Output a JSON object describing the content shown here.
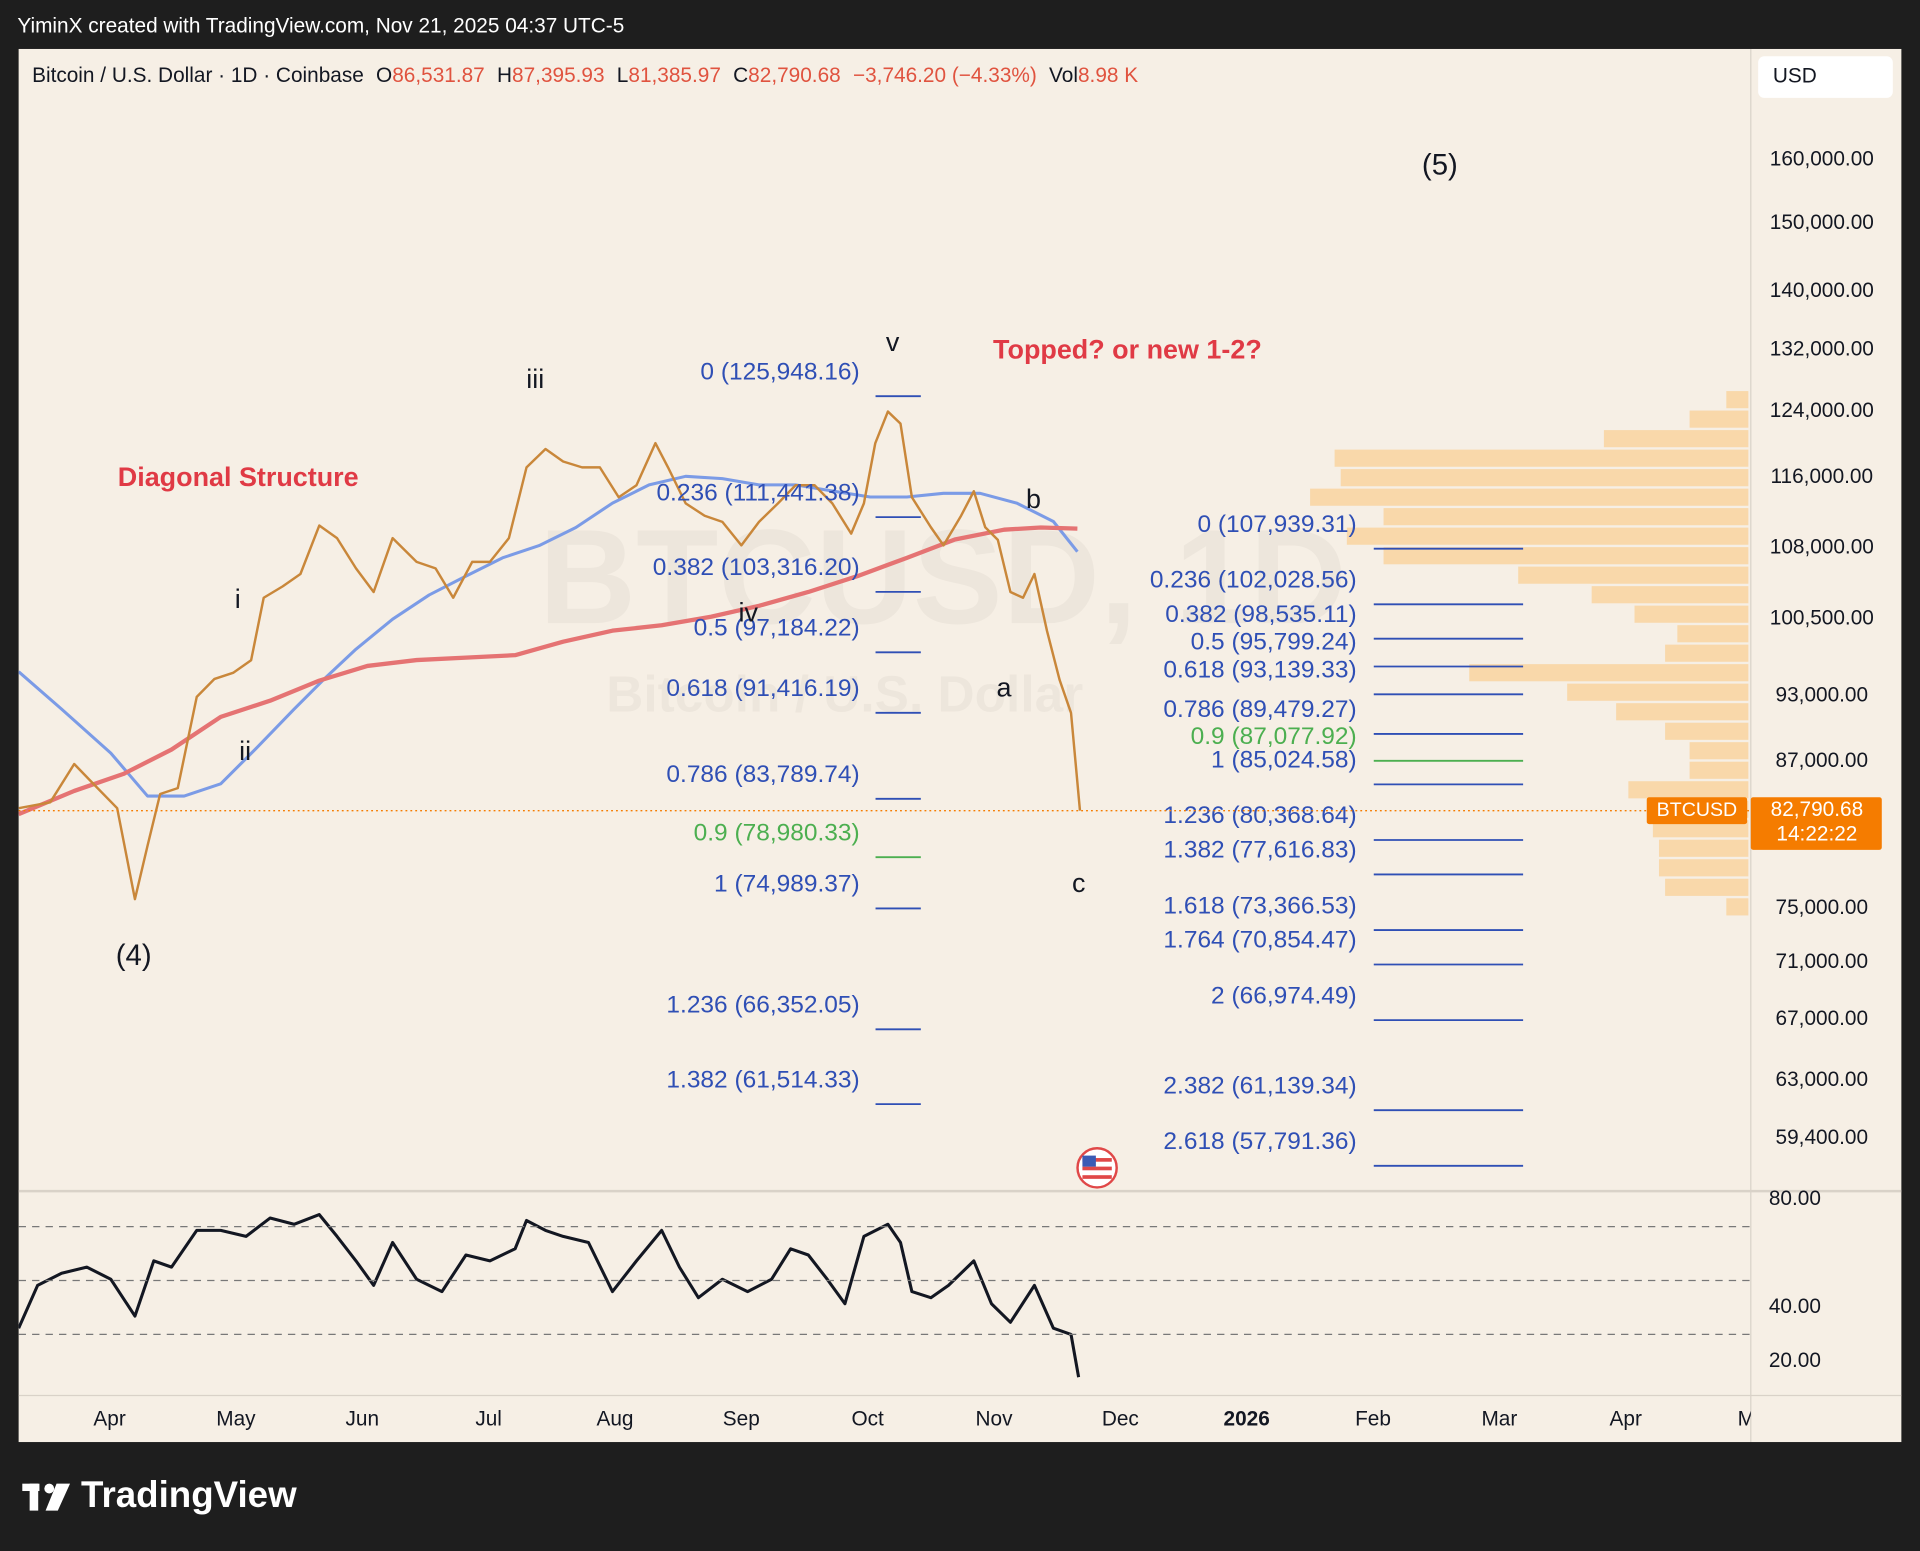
{
  "header": {
    "credit": "YiminX created with TradingView.com, Nov 21, 2025 04:37 UTC-5",
    "symbol": "Bitcoin / U.S. Dollar · 1D · Coinbase",
    "ohlc": [
      {
        "key": "O",
        "value": "86,531.87"
      },
      {
        "key": "H",
        "value": "87,395.93"
      },
      {
        "key": "L",
        "value": "81,385.97"
      },
      {
        "key": "C",
        "value": "82,790.68"
      }
    ],
    "change": "−3,746.20 (−4.33%)",
    "vol_key": "Vol",
    "vol": "8.98 K",
    "currency": "USD"
  },
  "watermark": {
    "ticker": "BTCUSD, 1D",
    "name": "Bitcoin / U.S. Dollar"
  },
  "annotations": [
    "(5)",
    "v",
    "iii",
    "i",
    "ii",
    "iv",
    "(4)",
    "a",
    "b",
    "c",
    "Diagonal Structure",
    "Topped? or new 1-2?"
  ],
  "footer": {
    "brand": "TradingView"
  },
  "chart_data": [
    {
      "type": "line",
      "log_scale": true,
      "xlim": [
        3.28,
        16.99
      ],
      "xticks": [
        {
          "value": 4,
          "label": "Apr"
        },
        {
          "value": 5,
          "label": "May"
        },
        {
          "value": 6,
          "label": "Jun"
        },
        {
          "value": 7,
          "label": "Jul"
        },
        {
          "value": 8,
          "label": "Aug"
        },
        {
          "value": 9,
          "label": "Sep"
        },
        {
          "value": 10,
          "label": "Oct"
        },
        {
          "value": 11,
          "label": "Nov"
        },
        {
          "value": 12,
          "label": "Dec"
        },
        {
          "value": 13,
          "label": "2026"
        },
        {
          "value": 14,
          "label": "Feb"
        },
        {
          "value": 15,
          "label": "Mar"
        },
        {
          "value": 16,
          "label": "Apr"
        },
        {
          "value": 17,
          "label": "Ma"
        }
      ],
      "ylim": [
        56400,
        179000
      ],
      "yticks": [
        {
          "value": 160000,
          "label": "160,000.00"
        },
        {
          "value": 150000,
          "label": "150,000.00"
        },
        {
          "value": 140000,
          "label": "140,000.00"
        },
        {
          "value": 132000,
          "label": "132,000.00"
        },
        {
          "value": 124000,
          "label": "124,000.00"
        },
        {
          "value": 116000,
          "label": "116,000.00"
        },
        {
          "value": 108000,
          "label": "108,000.00"
        },
        {
          "value": 100500,
          "label": "100,500.00"
        },
        {
          "value": 93000,
          "label": "93,000.00"
        },
        {
          "value": 87000,
          "label": "87,000.00"
        },
        {
          "value": 75000,
          "label": "75,000.00"
        },
        {
          "value": 71000,
          "label": "71,000.00"
        },
        {
          "value": 67000,
          "label": "67,000.00"
        },
        {
          "value": 63000,
          "label": "63,000.00"
        },
        {
          "value": 59400,
          "label": "59,400.00"
        }
      ],
      "series": [
        {
          "color": "#7b9be6",
          "width": 2.5,
          "x": [
            3.28,
            3.62,
            4.01,
            4.3,
            4.59,
            4.88,
            5.17,
            5.46,
            5.7,
            5.95,
            6.24,
            6.53,
            6.82,
            7.11,
            7.4,
            7.69,
            7.98,
            8.27,
            8.56,
            8.85,
            9.14,
            9.43,
            9.72,
            10.02,
            10.31,
            10.6,
            10.89,
            11.18,
            11.47,
            11.66
          ],
          "values": [
            95300,
            91750,
            87760,
            84020,
            84020,
            85070,
            88300,
            91750,
            94620,
            97500,
            100500,
            103000,
            104980,
            106940,
            108270,
            110270,
            113030,
            115140,
            116140,
            115860,
            115140,
            115140,
            114430,
            113730,
            113730,
            114150,
            114150,
            113030,
            110950,
            107600
          ]
        },
        {
          "color": "#e57373",
          "width": 3.5,
          "x": [
            3.28,
            3.72,
            4.11,
            4.49,
            4.88,
            5.27,
            5.66,
            6.04,
            6.43,
            6.82,
            7.21,
            7.59,
            7.98,
            8.37,
            8.76,
            9.14,
            9.53,
            9.92,
            10.31,
            10.69,
            11.08,
            11.37,
            11.66
          ],
          "values": [
            82500,
            84460,
            85930,
            88080,
            91040,
            92540,
            94440,
            95850,
            96430,
            96670,
            96910,
            98240,
            99340,
            99880,
            100750,
            101870,
            103300,
            104980,
            106940,
            108940,
            110030,
            110270,
            110160
          ]
        },
        {
          "color": "#c9873a",
          "width": 2,
          "x": [
            3.28,
            3.53,
            3.72,
            3.86,
            4.06,
            4.2,
            4.3,
            4.4,
            4.54,
            4.69,
            4.83,
            4.98,
            5.12,
            5.22,
            5.37,
            5.51,
            5.66,
            5.8,
            5.95,
            6.09,
            6.24,
            6.43,
            6.58,
            6.72,
            6.87,
            7.01,
            7.16,
            7.3,
            7.45,
            7.59,
            7.74,
            7.88,
            8.03,
            8.17,
            8.32,
            8.42,
            8.56,
            8.71,
            8.85,
            9,
            9.14,
            9.29,
            9.43,
            9.58,
            9.72,
            9.87,
            9.97,
            10.06,
            10.16,
            10.26,
            10.35,
            10.5,
            10.6,
            10.74,
            10.84,
            10.93,
            11.03,
            11.13,
            11.23,
            11.32,
            11.42,
            11.52,
            11.61,
            11.68
          ],
          "values": [
            83000,
            83500,
            86800,
            85200,
            83000,
            75700,
            79900,
            84200,
            84700,
            92900,
            94600,
            95200,
            96400,
            102700,
            103900,
            105200,
            110500,
            109100,
            105800,
            103300,
            109100,
            106500,
            105800,
            102700,
            106500,
            106500,
            109100,
            117200,
            119400,
            117900,
            117200,
            117200,
            113700,
            115100,
            120100,
            117200,
            113000,
            111600,
            110900,
            108300,
            110900,
            113000,
            115100,
            115100,
            113000,
            109600,
            113000,
            120100,
            124000,
            122500,
            113700,
            110300,
            108300,
            111600,
            114400,
            110300,
            108900,
            103300,
            102700,
            105200,
            99300,
            94500,
            91400,
            82790.68
          ]
        }
      ],
      "last_price": {
        "value": 82790.68,
        "label": "82,790.68",
        "tag": "BTCUSD",
        "countdown": "14:22:22",
        "color": "#f57c00"
      },
      "fib_sets": [
        {
          "levels": [
            {
              "label": "0 (125,948.16)",
              "value": 125948.16,
              "color": "#2f4fb5"
            },
            {
              "label": "0.236 (111,441.38)",
              "value": 111441.38,
              "color": "#2f4fb5"
            },
            {
              "label": "0.382 (103,316.20)",
              "value": 103316.2,
              "color": "#2f4fb5"
            },
            {
              "label": "0.5 (97,184.22)",
              "value": 97184.22,
              "color": "#2f4fb5"
            },
            {
              "label": "0.618 (91,416.19)",
              "value": 91416.19,
              "color": "#2f4fb5"
            },
            {
              "label": "0.786 (83,789.74)",
              "value": 83789.74,
              "color": "#2f4fb5"
            },
            {
              "label": "0.9 (78,980.33)",
              "value": 78980.33,
              "color": "#4caf50"
            },
            {
              "label": "1 (74,989.37)",
              "value": 74989.37,
              "color": "#2f4fb5"
            },
            {
              "label": "1.236 (66,352.05)",
              "value": 66352.05,
              "color": "#2f4fb5"
            },
            {
              "label": "1.382 (61,514.33)",
              "value": 61514.33,
              "color": "#2f4fb5"
            }
          ]
        },
        {
          "levels": [
            {
              "label": "0 (107,939.31)",
              "value": 107939.31,
              "color": "#2f4fb5"
            },
            {
              "label": "0.236 (102,028.56)",
              "value": 102028.56,
              "color": "#2f4fb5"
            },
            {
              "label": "0.382 (98,535.11)",
              "value": 98535.11,
              "color": "#2f4fb5"
            },
            {
              "label": "0.5 (95,799.24)",
              "value": 95799.24,
              "color": "#2f4fb5"
            },
            {
              "label": "0.618 (93,139.33)",
              "value": 93139.33,
              "color": "#2f4fb5"
            },
            {
              "label": "0.786 (89,479.27)",
              "value": 89479.27,
              "color": "#2f4fb5"
            },
            {
              "label": "0.9 (87,077.92)",
              "value": 87077.92,
              "color": "#4caf50"
            },
            {
              "label": "1 (85,024.58)",
              "value": 85024.58,
              "color": "#2f4fb5"
            },
            {
              "label": "1.236 (80,368.64)",
              "value": 80368.64,
              "color": "#2f4fb5"
            },
            {
              "label": "1.382 (77,616.83)",
              "value": 77616.83,
              "color": "#2f4fb5"
            },
            {
              "label": "1.618 (73,366.53)",
              "value": 73366.53,
              "color": "#2f4fb5"
            },
            {
              "label": "1.764 (70,854.47)",
              "value": 70854.47,
              "color": "#2f4fb5"
            },
            {
              "label": "2 (66,974.49)",
              "value": 66974.49,
              "color": "#2f4fb5"
            },
            {
              "label": "2.382 (61,139.34)",
              "value": 61139.34,
              "color": "#2f4fb5"
            },
            {
              "label": "2.618 (57,791.36)",
              "value": 57791.36,
              "color": "#2f4fb5"
            }
          ]
        }
      ],
      "volume_profile": {
        "color": "#f9d3a0",
        "levels": [
          125510,
          123060,
          120650,
          118290,
          115980,
          113710,
          111490,
          109310,
          107170,
          105080,
          103020,
          101010,
          99030,
          97100,
          95200,
          93340,
          91510,
          89720,
          87970,
          86250,
          84560,
          82910,
          81290,
          79700,
          78140,
          76610,
          75110
        ],
        "values": [
          18,
          48,
          118,
          338,
          333,
          358,
          298,
          328,
          298,
          188,
          128,
          93,
          58,
          68,
          228,
          148,
          108,
          68,
          48,
          48,
          98,
          78,
          78,
          73,
          73,
          68,
          18
        ]
      }
    },
    {
      "type": "line",
      "ylim": [
        7.3,
        82.3
      ],
      "yticks": [
        {
          "value": 80,
          "label": "80.00"
        },
        {
          "value": 40,
          "label": "40.00"
        },
        {
          "value": 20,
          "label": "20.00"
        }
      ],
      "bands": [
        70,
        50,
        30
      ],
      "series": [
        {
          "color": "#131722",
          "width": 2.5,
          "x": [
            3.28,
            3.43,
            3.62,
            3.82,
            4.01,
            4.2,
            4.35,
            4.49,
            4.69,
            4.88,
            5.08,
            5.27,
            5.46,
            5.66,
            5.8,
            5.95,
            6.09,
            6.24,
            6.43,
            6.63,
            6.82,
            7.01,
            7.21,
            7.3,
            7.45,
            7.59,
            7.79,
            7.98,
            8.17,
            8.37,
            8.51,
            8.66,
            8.85,
            9.05,
            9.24,
            9.39,
            9.53,
            9.68,
            9.82,
            9.97,
            10.16,
            10.26,
            10.35,
            10.5,
            10.64,
            10.84,
            10.98,
            11.13,
            11.32,
            11.47,
            11.61,
            11.67
          ],
          "values": [
            32.3,
            48.2,
            52.7,
            55,
            50.5,
            36.8,
            57.3,
            55,
            68.6,
            68.6,
            66.4,
            73.2,
            70.9,
            74.5,
            66.4,
            57.3,
            48.2,
            64.1,
            50.5,
            45.9,
            59.5,
            57.3,
            61.8,
            72.3,
            68.6,
            66.4,
            64.1,
            45.9,
            57.3,
            68.6,
            55,
            43.6,
            50.5,
            45.9,
            50.5,
            61.8,
            59.5,
            50.5,
            41.4,
            66.4,
            70.9,
            64.1,
            45.9,
            43.6,
            48.2,
            57.3,
            41.4,
            34.5,
            48.2,
            32.3,
            30,
            14.1
          ]
        }
      ]
    }
  ]
}
